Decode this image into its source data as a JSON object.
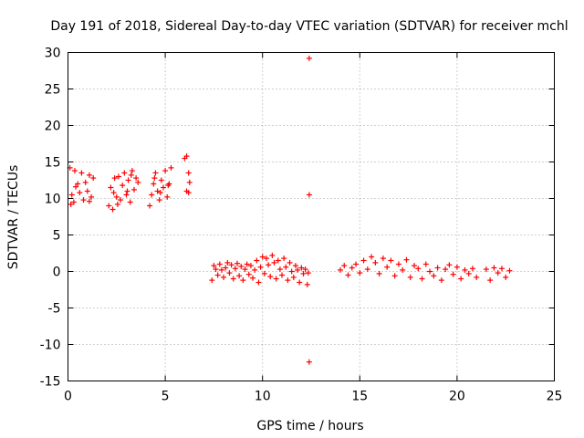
{
  "chart_data": {
    "type": "scatter",
    "title": "Day 191 of 2018, Sidereal Day-to-day VTEC variation (SDTVAR) for receiver mchl",
    "xlabel": "GPS time / hours",
    "ylabel": "SDTVAR / TECUs",
    "xlim": [
      0,
      25
    ],
    "ylim": [
      -15,
      30
    ],
    "xticks": [
      "0",
      "5",
      "10",
      "15",
      "20",
      "25"
    ],
    "yticks": [
      "-15",
      "-10",
      "-5",
      "0",
      "5",
      "10",
      "15",
      "20",
      "25",
      "30"
    ],
    "grid": true,
    "marker": "+",
    "color": "#ff0000",
    "series": [
      {
        "name": "SDTVAR",
        "x": [
          0.1,
          0.2,
          0.3,
          0.35,
          0.5,
          0.6,
          0.7,
          0.8,
          0.9,
          1.0,
          1.1,
          1.2,
          1.3,
          1.1,
          0.4,
          0.15,
          2.1,
          2.2,
          2.3,
          2.4,
          2.5,
          2.6,
          2.7,
          2.8,
          2.9,
          3.0,
          3.1,
          3.2,
          3.3,
          3.4,
          3.5,
          3.6,
          2.35,
          2.55,
          3.05,
          3.25,
          4.2,
          4.3,
          4.4,
          4.5,
          4.6,
          4.7,
          4.8,
          4.9,
          5.0,
          5.1,
          5.2,
          5.3,
          4.45,
          4.75,
          5.15,
          6.0,
          6.1,
          6.2,
          6.25,
          6.1,
          6.2,
          12.4,
          12.4,
          12.4,
          7.4,
          7.5,
          7.6,
          7.7,
          7.8,
          7.9,
          8.0,
          8.1,
          8.2,
          8.3,
          8.4,
          8.5,
          8.6,
          8.7,
          8.8,
          8.9,
          9.0,
          9.1,
          9.2,
          9.3,
          9.4,
          9.5,
          9.6,
          9.7,
          9.8,
          9.9,
          10.0,
          10.1,
          10.2,
          10.3,
          10.4,
          10.5,
          10.6,
          10.7,
          10.8,
          10.9,
          11.0,
          11.1,
          11.2,
          11.3,
          11.4,
          11.5,
          11.6,
          11.7,
          11.8,
          11.9,
          12.0,
          12.1,
          12.2,
          12.3,
          12.35,
          14.0,
          14.2,
          14.4,
          14.6,
          14.8,
          15.0,
          15.2,
          15.4,
          15.6,
          15.8,
          16.0,
          16.2,
          16.4,
          16.6,
          16.8,
          17.0,
          17.2,
          17.4,
          17.6,
          17.8,
          18.0,
          18.2,
          18.4,
          18.6,
          18.8,
          19.0,
          19.2,
          19.4,
          19.6,
          19.8,
          20.0,
          20.2,
          20.4,
          20.6,
          20.8,
          21.0,
          21.5,
          21.7,
          21.9,
          22.1,
          22.3,
          22.5,
          22.7
        ],
        "y": [
          14.2,
          10.5,
          9.5,
          13.8,
          12.0,
          10.8,
          13.5,
          9.8,
          12.2,
          11.0,
          9.6,
          10.2,
          12.8,
          13.2,
          11.6,
          9.2,
          9.0,
          11.5,
          8.5,
          12.8,
          10.2,
          13.0,
          9.8,
          11.8,
          13.5,
          10.5,
          12.5,
          9.5,
          13.8,
          11.2,
          12.8,
          12.2,
          10.8,
          9.2,
          11.0,
          13.2,
          9.0,
          10.5,
          12.0,
          13.5,
          11.0,
          9.8,
          12.5,
          11.5,
          13.8,
          10.2,
          12.0,
          14.2,
          12.8,
          10.8,
          11.8,
          15.5,
          15.8,
          13.5,
          12.2,
          11.0,
          10.8,
          29.2,
          10.5,
          -12.4,
          -1.2,
          0.8,
          0.3,
          -0.5,
          1.0,
          0.2,
          -0.8,
          0.5,
          1.2,
          -0.2,
          0.9,
          -1.0,
          0.4,
          1.1,
          -0.6,
          0.7,
          -1.2,
          0.3,
          1.0,
          -0.4,
          0.8,
          -0.9,
          0.2,
          1.5,
          -1.5,
          0.6,
          2.0,
          -0.3,
          1.8,
          0.9,
          -0.7,
          2.2,
          1.2,
          -1.0,
          1.5,
          0.3,
          -0.5,
          1.8,
          0.6,
          -1.2,
          1.2,
          0.0,
          -0.8,
          0.8,
          0.2,
          -1.5,
          0.5,
          -0.3,
          0.3,
          -1.8,
          -0.2,
          0.2,
          0.8,
          -0.5,
          0.5,
          1.0,
          -0.2,
          1.5,
          0.3,
          2.0,
          1.2,
          -0.3,
          1.8,
          0.6,
          1.5,
          -0.6,
          1.0,
          0.2,
          1.6,
          -0.8,
          0.8,
          0.4,
          -1.0,
          1.0,
          0.0,
          -0.6,
          0.5,
          -1.2,
          0.3,
          0.9,
          -0.4,
          0.6,
          -1.0,
          0.2,
          -0.3,
          0.4,
          -0.8,
          0.3,
          -1.2,
          0.5,
          -0.2,
          0.4,
          -0.8,
          0.1
        ]
      }
    ]
  }
}
